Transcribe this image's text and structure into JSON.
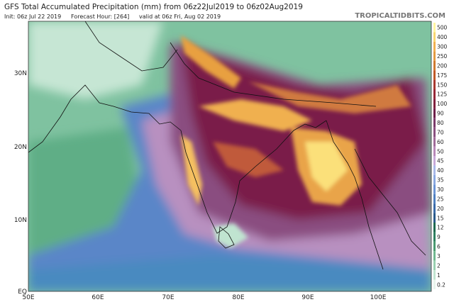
{
  "header": {
    "title": "GFS Total Accumulated Precipitation (mm) from 06z22Jul2019 to 06z02Aug2019",
    "init": "Init: 06z Jul 22 2019",
    "forecast_hour": "Forecast Hour: [264]",
    "valid": "valid at 06z Fri, Aug 02 2019",
    "brand": "TROPICALTIDBITS.COM"
  },
  "map": {
    "lat_labels": [
      "30N",
      "20N",
      "10N",
      "EQ"
    ],
    "lon_labels": [
      "50E",
      "60E",
      "70E",
      "80E",
      "90E",
      "100E"
    ]
  },
  "colorbar": {
    "labels": [
      500,
      400,
      300,
      250,
      200,
      175,
      150,
      125,
      100,
      90,
      80,
      70,
      60,
      50,
      45,
      40,
      35,
      30,
      25,
      20,
      15,
      12,
      9,
      6,
      3,
      2,
      1,
      0.2
    ],
    "colors": [
      "#fff5a0",
      "#f8d670",
      "#f0b050",
      "#e39a40",
      "#d07a30",
      "#c05a28",
      "#a83a30",
      "#962838",
      "#80203e",
      "#6e1f4a",
      "#7a3a6a",
      "#8a5080",
      "#a06a98",
      "#b888b8",
      "#c8a8d8",
      "#a8b8e8",
      "#8aa8e0",
      "#6c94d4",
      "#5080c0",
      "#3a6aa8",
      "#2a5a8a",
      "#1f6a50",
      "#2e8060",
      "#4a9a70",
      "#70b890",
      "#98d0b0",
      "#c0e4d0",
      "#e8f4ec"
    ]
  }
}
